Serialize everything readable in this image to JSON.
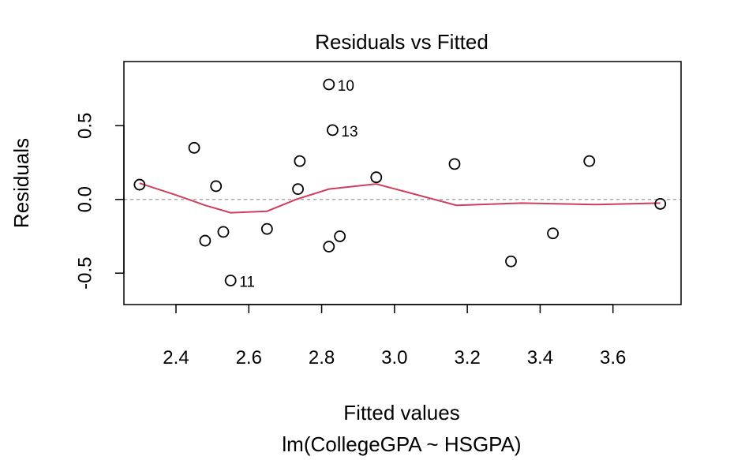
{
  "chart_data": {
    "type": "scatter",
    "title": "Residuals vs Fitted",
    "xlabel": "Fitted values",
    "subtitle": "lm(CollegeGPA ~ HSGPA)",
    "ylabel": "Residuals",
    "xlim": [
      2.257,
      3.787
    ],
    "ylim": [
      -0.713,
      0.935
    ],
    "xticks": [
      2.4,
      2.6,
      2.8,
      3.0,
      3.2,
      3.4,
      3.6
    ],
    "xtick_labels": [
      "2.4",
      "2.6",
      "2.8",
      "3.0",
      "3.2",
      "3.4",
      "3.6"
    ],
    "yticks": [
      -0.5,
      0.0,
      0.5
    ],
    "ytick_labels": [
      "-0.5",
      "0.0",
      "0.5"
    ],
    "reference_line_y": 0,
    "points": [
      {
        "x": 2.3,
        "y": 0.1
      },
      {
        "x": 2.45,
        "y": 0.35
      },
      {
        "x": 2.48,
        "y": -0.28
      },
      {
        "x": 2.51,
        "y": 0.09
      },
      {
        "x": 2.53,
        "y": -0.22
      },
      {
        "x": 2.55,
        "y": -0.55,
        "label": "11"
      },
      {
        "x": 2.65,
        "y": -0.2
      },
      {
        "x": 2.735,
        "y": 0.07
      },
      {
        "x": 2.74,
        "y": 0.26
      },
      {
        "x": 2.82,
        "y": 0.78,
        "label": "10"
      },
      {
        "x": 2.82,
        "y": -0.32
      },
      {
        "x": 2.83,
        "y": 0.47,
        "label": "13"
      },
      {
        "x": 2.85,
        "y": -0.25
      },
      {
        "x": 2.95,
        "y": 0.15
      },
      {
        "x": 3.165,
        "y": 0.24
      },
      {
        "x": 3.32,
        "y": -0.42
      },
      {
        "x": 3.435,
        "y": -0.23
      },
      {
        "x": 3.535,
        "y": 0.26
      },
      {
        "x": 3.73,
        "y": -0.03
      }
    ],
    "smooth": {
      "x": [
        2.3,
        2.4,
        2.48,
        2.55,
        2.65,
        2.73,
        2.82,
        2.95,
        3.17,
        3.35,
        3.55,
        3.73
      ],
      "y": [
        0.11,
        0.03,
        -0.04,
        -0.09,
        -0.08,
        0.0,
        0.07,
        0.105,
        -0.04,
        -0.025,
        -0.035,
        -0.025
      ]
    },
    "colors": {
      "smooth": "#cf3e5c",
      "reference": "#aaaaaa",
      "points": "#000000"
    }
  }
}
